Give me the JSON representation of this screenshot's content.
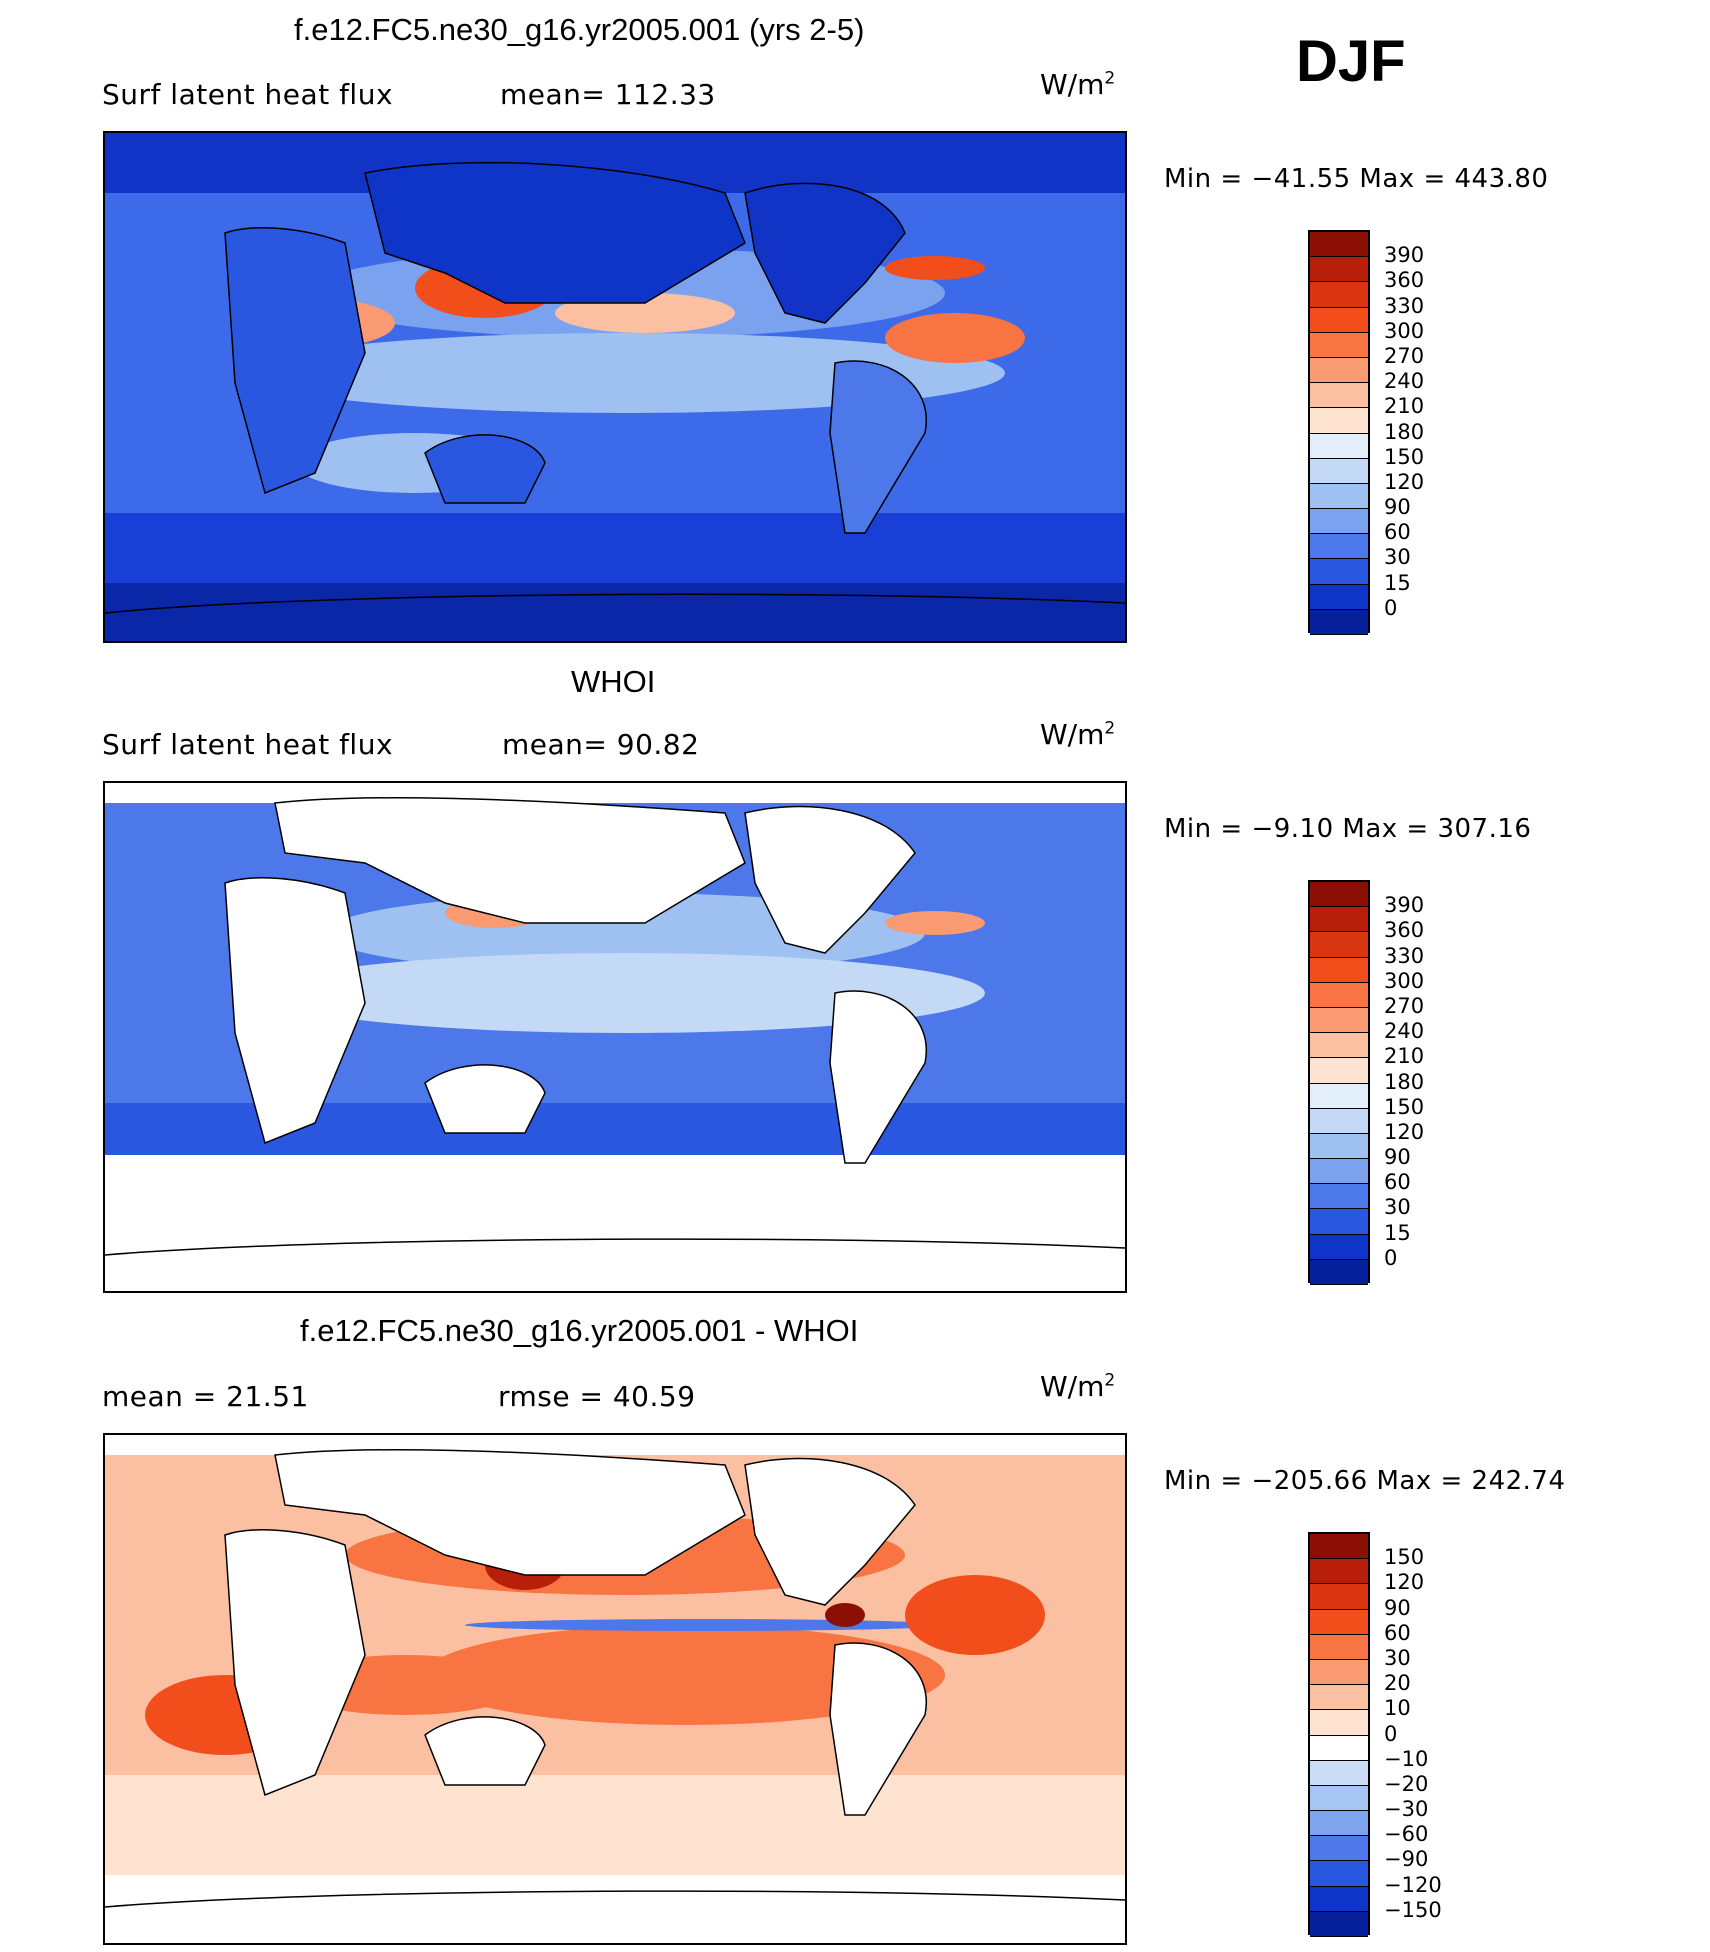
{
  "season": "DJF",
  "panels": [
    {
      "id": "model",
      "title": "f.e12.FC5.ne30_g16.yr2005.001 (yrs 2-5)",
      "left_label": "Surf latent heat flux",
      "stat1": "mean= 112.33",
      "stat2": "",
      "units": "W/m",
      "units_sup": "2",
      "minmax": "Min = −41.55 Max = 443.80",
      "colorbar": {
        "labels": [
          "390",
          "360",
          "330",
          "300",
          "270",
          "240",
          "210",
          "180",
          "150",
          "120",
          "90",
          "60",
          "30",
          "15",
          "0"
        ],
        "colors": [
          "#8b0f04",
          "#b81f0a",
          "#d83510",
          "#f14e1c",
          "#f87443",
          "#f99a72",
          "#fbbfa2",
          "#fde3d0",
          "#e2eef9",
          "#c3d9f5",
          "#9fc1f1",
          "#7aa2ee",
          "#4d78ea",
          "#2a57e0",
          "#0f35c8",
          "#06209b"
        ]
      }
    },
    {
      "id": "obs",
      "title": "WHOI",
      "left_label": "Surf latent heat flux",
      "stat1": "mean=  90.82",
      "stat2": "",
      "units": "W/m",
      "units_sup": "2",
      "minmax": "Min =  −9.10 Max = 307.16",
      "colorbar": {
        "labels": [
          "390",
          "360",
          "330",
          "300",
          "270",
          "240",
          "210",
          "180",
          "150",
          "120",
          "90",
          "60",
          "30",
          "15",
          "0"
        ],
        "colors": [
          "#8b0f04",
          "#b81f0a",
          "#d83510",
          "#f14e1c",
          "#f87443",
          "#f99a72",
          "#fbbfa2",
          "#fde3d0",
          "#e2eef9",
          "#c3d9f5",
          "#9fc1f1",
          "#7aa2ee",
          "#4d78ea",
          "#2a57e0",
          "#0f35c8",
          "#06209b"
        ]
      }
    },
    {
      "id": "diff",
      "title": "f.e12.FC5.ne30_g16.yr2005.001 - WHOI",
      "left_label": "mean =   21.51",
      "stat1": "rmse =   40.59",
      "stat2": "",
      "units": "W/m",
      "units_sup": "2",
      "minmax": "Min = −205.66 Max = 242.74",
      "colorbar": {
        "labels": [
          "150",
          "120",
          "90",
          "60",
          "30",
          "20",
          "10",
          "0",
          "−10",
          "−20",
          "−30",
          "−60",
          "−90",
          "−120",
          "−150"
        ],
        "colors": [
          "#8b0f04",
          "#b81f0a",
          "#d83510",
          "#f14e1c",
          "#f87443",
          "#f99a72",
          "#fbbfa2",
          "#fde3d0",
          "#ffffff",
          "#c9ddf7",
          "#a6c5f2",
          "#7ea4ee",
          "#4f79ea",
          "#2a57e0",
          "#0f35c8",
          "#06209b"
        ]
      }
    }
  ],
  "chart_data": [
    {
      "type": "heatmap",
      "title": "f.e12.FC5.ne30_g16.yr2005.001 (yrs 2-5)",
      "variable": "Surf latent heat flux",
      "units": "W/m2",
      "mean": 112.33,
      "min": -41.55,
      "max": 443.8,
      "contour_levels": [
        0,
        15,
        30,
        60,
        90,
        120,
        150,
        180,
        210,
        240,
        270,
        300,
        330,
        360,
        390
      ]
    },
    {
      "type": "heatmap",
      "title": "WHOI",
      "variable": "Surf latent heat flux",
      "units": "W/m2",
      "mean": 90.82,
      "min": -9.1,
      "max": 307.16,
      "contour_levels": [
        0,
        15,
        30,
        60,
        90,
        120,
        150,
        180,
        210,
        240,
        270,
        300,
        330,
        360,
        390
      ]
    },
    {
      "type": "heatmap",
      "title": "f.e12.FC5.ne30_g16.yr2005.001 - WHOI",
      "units": "W/m2",
      "mean": 21.51,
      "rmse": 40.59,
      "min": -205.66,
      "max": 242.74,
      "contour_levels": [
        -150,
        -120,
        -90,
        -60,
        -30,
        -20,
        -10,
        0,
        10,
        20,
        30,
        60,
        90,
        120,
        150
      ]
    }
  ]
}
